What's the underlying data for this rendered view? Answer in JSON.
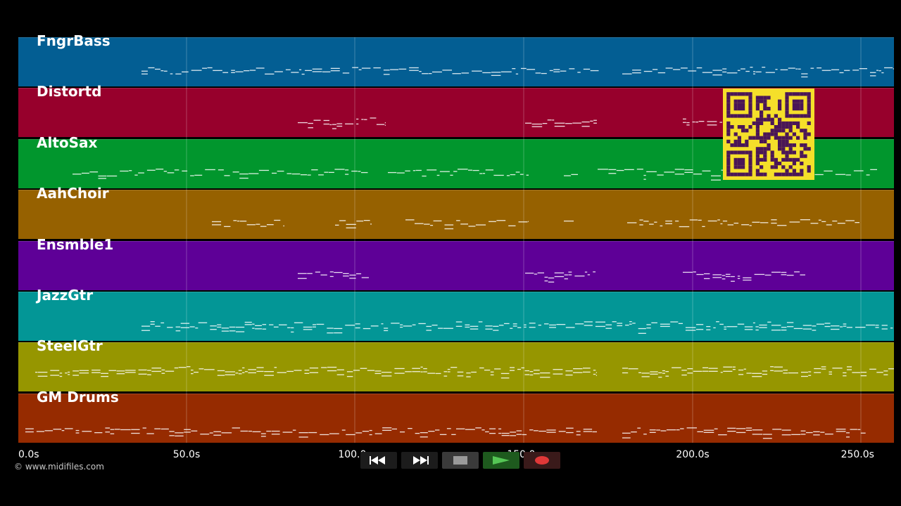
{
  "tracks": [
    {
      "name": "FngrBass",
      "color": "#035e93"
    },
    {
      "name": "Distortd",
      "color": "#97002c"
    },
    {
      "name": "AltoSax",
      "color": "#01962d"
    },
    {
      "name": "AahChoir",
      "color": "#966100"
    },
    {
      "name": "Ensmble1",
      "color": "#5e0097"
    },
    {
      "name": "JazzGtr",
      "color": "#039696"
    },
    {
      "name": "SteelGtr",
      "color": "#969600"
    },
    {
      "name": "GM Drums",
      "color": "#962b00"
    }
  ],
  "timeline": {
    "ticks": [
      "0.0s",
      "50.0s",
      "100.0s",
      "150.0s",
      "200.0s",
      "250.0s"
    ]
  },
  "copyright": "© www.midifiles.com",
  "controls": {
    "rewind": "rewind-icon",
    "fast_forward": "fast-forward-icon",
    "stop": "stop-icon",
    "play": "play-icon",
    "record": "record-icon"
  },
  "qr_code": "qr-code-icon"
}
